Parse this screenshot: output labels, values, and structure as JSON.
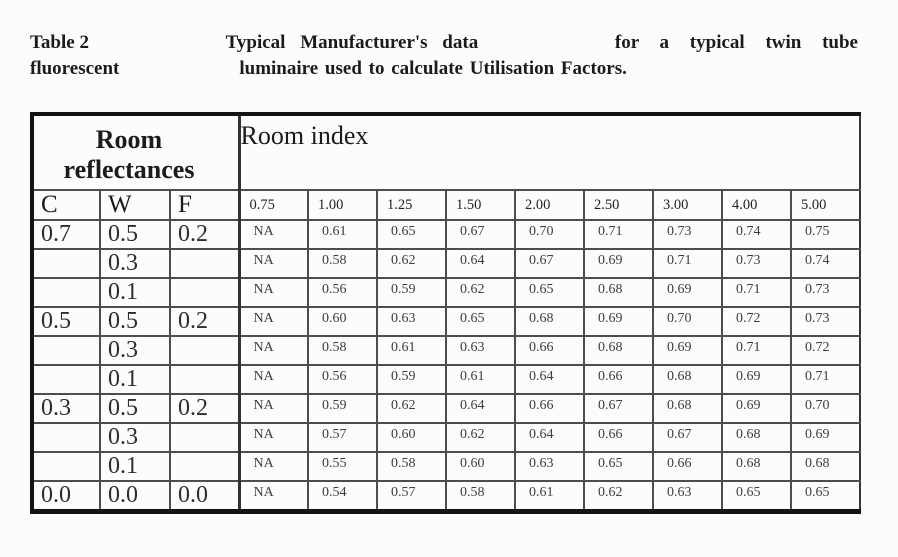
{
  "colors": {
    "background": "#fcfcfb",
    "ink": "#1b1b1b",
    "cell_ink": "#3d3d3d",
    "grid_line": "#4d4d4d",
    "frame": "#141414"
  },
  "caption": {
    "line1_part1": "Table 2",
    "line1_part2": "Typical Manufacturer's data",
    "line1_part3": "for a typical twin tube",
    "line2_part1": "fluorescent",
    "line2_part2": "luminaire used to calculate Utilisation Factors."
  },
  "table": {
    "left_header": "Room reflectances",
    "right_header": "Room index",
    "reflectance_columns": [
      "C",
      "W",
      "F"
    ],
    "room_index_columns": [
      "0.75",
      "1.00",
      "1.25",
      "1.50",
      "2.00",
      "2.50",
      "3.00",
      "4.00",
      "5.00"
    ],
    "rows": [
      {
        "c": "0.7",
        "w": "0.5",
        "f": "0.2",
        "values": [
          "NA",
          "0.61",
          "0.65",
          "0.67",
          "0.70",
          "0.71",
          "0.73",
          "0.74",
          "0.75"
        ]
      },
      {
        "c": "",
        "w": "0.3",
        "f": "",
        "values": [
          "NA",
          "0.58",
          "0.62",
          "0.64",
          "0.67",
          "0.69",
          "0.71",
          "0.73",
          "0.74"
        ]
      },
      {
        "c": "",
        "w": "0.1",
        "f": "",
        "values": [
          "NA",
          "0.56",
          "0.59",
          "0.62",
          "0.65",
          "0.68",
          "0.69",
          "0.71",
          "0.73"
        ]
      },
      {
        "c": "0.5",
        "w": "0.5",
        "f": "0.2",
        "values": [
          "NA",
          "0.60",
          "0.63",
          "0.65",
          "0.68",
          "0.69",
          "0.70",
          "0.72",
          "0.73"
        ]
      },
      {
        "c": "",
        "w": "0.3",
        "f": "",
        "values": [
          "NA",
          "0.58",
          "0.61",
          "0.63",
          "0.66",
          "0.68",
          "0.69",
          "0.71",
          "0.72"
        ]
      },
      {
        "c": "",
        "w": "0.1",
        "f": "",
        "values": [
          "NA",
          "0.56",
          "0.59",
          "0.61",
          "0.64",
          "0.66",
          "0.68",
          "0.69",
          "0.71"
        ]
      },
      {
        "c": "0.3",
        "w": "0.5",
        "f": "0.2",
        "values": [
          "NA",
          "0.59",
          "0.62",
          "0.64",
          "0.66",
          "0.67",
          "0.68",
          "0.69",
          "0.70"
        ]
      },
      {
        "c": "",
        "w": "0.3",
        "f": "",
        "values": [
          "NA",
          "0.57",
          "0.60",
          "0.62",
          "0.64",
          "0.66",
          "0.67",
          "0.68",
          "0.69"
        ]
      },
      {
        "c": "",
        "w": "0.1",
        "f": "",
        "values": [
          "NA",
          "0.55",
          "0.58",
          "0.60",
          "0.63",
          "0.65",
          "0.66",
          "0.68",
          "0.68"
        ]
      },
      {
        "c": "0.0",
        "w": "0.0",
        "f": "0.0",
        "values": [
          "NA",
          "0.54",
          "0.57",
          "0.58",
          "0.61",
          "0.62",
          "0.63",
          "0.65",
          "0.65"
        ]
      }
    ]
  }
}
